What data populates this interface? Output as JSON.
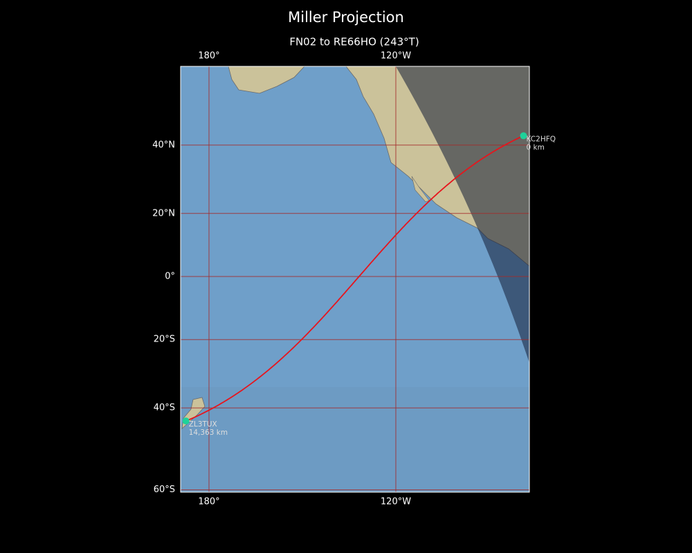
{
  "title": "Miller Projection",
  "subtitle": "FN02 to RE66HO (243°T)",
  "lon_ticks": [
    {
      "value": -180,
      "label": "180°"
    },
    {
      "value": -120,
      "label": "120°W"
    }
  ],
  "lat_ticks": [
    {
      "value": 40,
      "label": "40°N"
    },
    {
      "value": 20,
      "label": "20°N"
    },
    {
      "value": 0,
      "label": "0°"
    },
    {
      "value": -20,
      "label": "20°S"
    },
    {
      "value": -40,
      "label": "40°S"
    },
    {
      "value": -60,
      "label": "60°S"
    }
  ],
  "stations": [
    {
      "name": "KC2HFQ",
      "distance": "0 km",
      "lat": 42.5,
      "lon": -79.0
    },
    {
      "name": "ZL3TUX",
      "distance": "14,363 km",
      "lat": -43.5,
      "lon": 172.6
    }
  ]
}
